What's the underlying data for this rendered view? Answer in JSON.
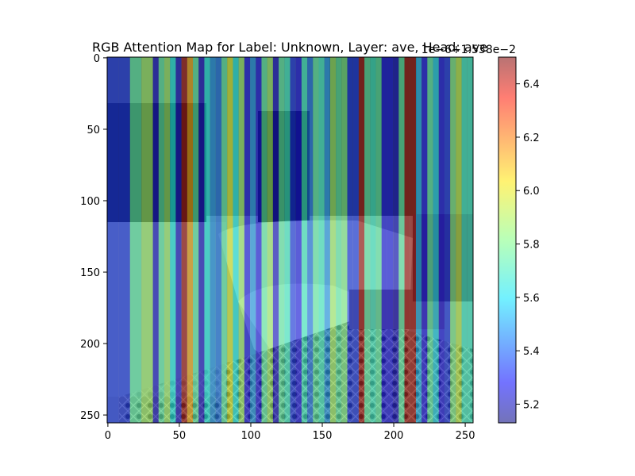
{
  "chart_data": {
    "type": "heatmap",
    "title": "RGB Attention Map for Label: Unknown, Layer: ave, Head: ave",
    "xlabel": "",
    "ylabel": "",
    "x_ticks": [
      0,
      50,
      100,
      150,
      200,
      250
    ],
    "y_ticks": [
      0,
      50,
      100,
      150,
      200,
      250
    ],
    "xlim": [
      -0.5,
      255.5
    ],
    "ylim": [
      255.5,
      -0.5
    ],
    "grid": false,
    "background_image": "photo of a living room interior with sofa, patterned rug, bookshelves and side table",
    "stripe_width": 16,
    "column_attention": [
      [
        0,
        5.35
      ],
      [
        8,
        5.35
      ],
      [
        16,
        5.75
      ],
      [
        24,
        5.85
      ],
      [
        32,
        5.25
      ],
      [
        36,
        5.75
      ],
      [
        40,
        5.85
      ],
      [
        44,
        5.65
      ],
      [
        48,
        5.25
      ],
      [
        52,
        6.45
      ],
      [
        56,
        6.1
      ],
      [
        60,
        5.75
      ],
      [
        64,
        5.25
      ],
      [
        68,
        5.65
      ],
      [
        72,
        5.5
      ],
      [
        76,
        5.45
      ],
      [
        80,
        5.75
      ],
      [
        84,
        5.95
      ],
      [
        88,
        5.65
      ],
      [
        92,
        5.85
      ],
      [
        96,
        5.3
      ],
      [
        100,
        5.5
      ],
      [
        104,
        5.3
      ],
      [
        108,
        5.75
      ],
      [
        112,
        5.85
      ],
      [
        116,
        5.25
      ],
      [
        120,
        5.75
      ],
      [
        124,
        5.7
      ],
      [
        128,
        5.35
      ],
      [
        132,
        5.3
      ],
      [
        136,
        5.7
      ],
      [
        140,
        5.45
      ],
      [
        144,
        5.75
      ],
      [
        148,
        5.7
      ],
      [
        152,
        5.5
      ],
      [
        156,
        5.85
      ],
      [
        160,
        5.75
      ],
      [
        164,
        5.8
      ],
      [
        168,
        5.35
      ],
      [
        172,
        5.35
      ],
      [
        176,
        6.45
      ],
      [
        180,
        5.75
      ],
      [
        184,
        5.7
      ],
      [
        188,
        5.75
      ],
      [
        192,
        5.3
      ],
      [
        196,
        5.3
      ],
      [
        200,
        5.25
      ],
      [
        204,
        5.75
      ],
      [
        208,
        6.45
      ],
      [
        212,
        6.45
      ],
      [
        216,
        5.55
      ],
      [
        220,
        5.3
      ],
      [
        224,
        5.75
      ],
      [
        228,
        5.6
      ],
      [
        232,
        5.3
      ],
      [
        236,
        5.35
      ],
      [
        240,
        5.8
      ],
      [
        244,
        5.9
      ],
      [
        248,
        5.7
      ],
      [
        252,
        5.7
      ]
    ],
    "colorbar": {
      "colormap": "jet",
      "vmin": 5.13,
      "vmax": 6.5,
      "ticks": [
        5.2,
        5.4,
        5.6,
        5.8,
        6.0,
        6.2,
        6.4
      ],
      "tick_labels": [
        "5.2",
        "5.4",
        "5.6",
        "5.8",
        "6.0",
        "6.2",
        "6.4"
      ],
      "offset_text": "1e−6+1.538e−2",
      "alpha": 0.5
    }
  }
}
